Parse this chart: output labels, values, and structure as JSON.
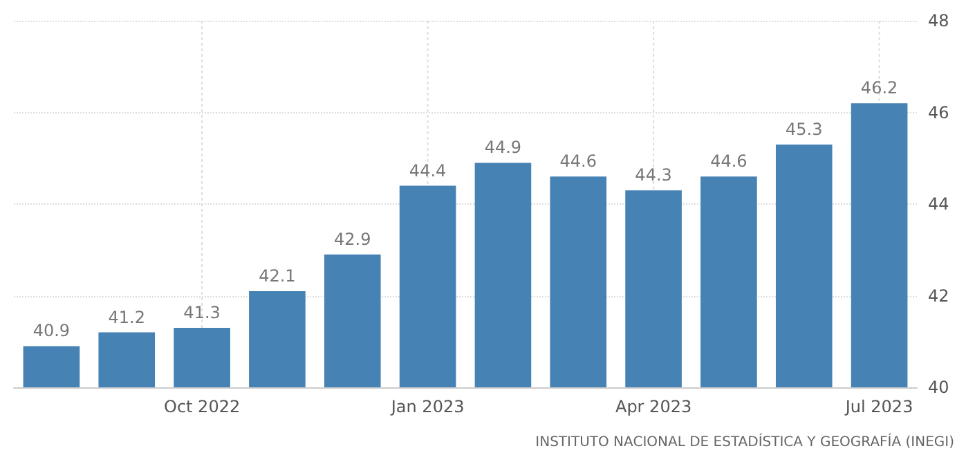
{
  "chart_data": {
    "type": "bar",
    "categories": [
      null,
      null,
      "Oct 2022",
      null,
      null,
      "Jan 2023",
      null,
      null,
      "Apr 2023",
      null,
      null,
      "Jul 2023"
    ],
    "values": [
      40.9,
      41.2,
      41.3,
      42.1,
      42.9,
      44.4,
      44.9,
      44.6,
      44.3,
      44.6,
      45.3,
      46.2
    ],
    "color": "#4682b4",
    "ylim": [
      40,
      48
    ],
    "yticks": [
      40,
      42,
      44,
      46,
      48
    ],
    "grid": true,
    "data_labels": true,
    "annotations": [
      "INSTITUTO NACIONAL DE ESTADÍSTICA Y GEOGRAFÍA (INEGI)"
    ]
  }
}
